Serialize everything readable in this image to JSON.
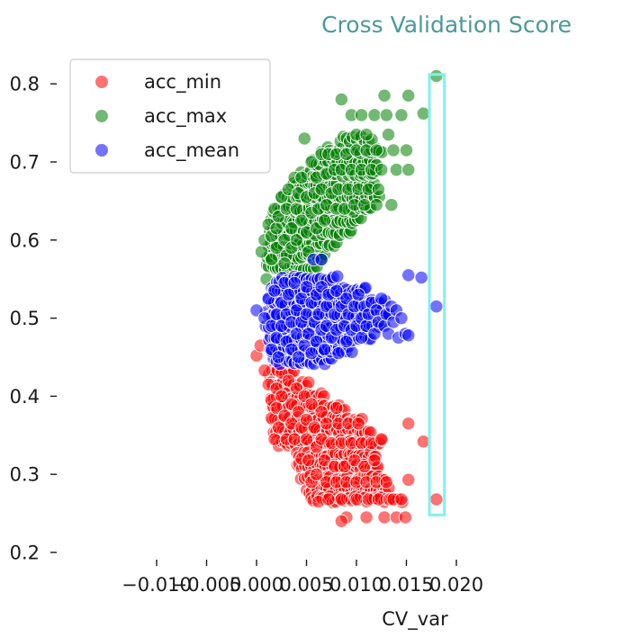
{
  "chart_data": {
    "type": "scatter",
    "title": "Cross Validation Score",
    "xlabel": "CV_var",
    "ylabel": "",
    "xlim": [
      -0.0125,
      0.0208
    ],
    "ylim": [
      0.2,
      0.84
    ],
    "x_ticks": [
      -0.01,
      -0.005,
      0.0,
      0.005,
      0.01,
      0.015,
      0.02
    ],
    "x_tick_labels": [
      "−0.010",
      "−0.005",
      "0.000",
      "0.005",
      "0.010",
      "0.015",
      "0.020"
    ],
    "y_ticks": [
      0.2,
      0.3,
      0.4,
      0.5,
      0.6,
      0.7,
      0.8
    ],
    "y_tick_labels": [
      "0.2",
      "0.3",
      "0.4",
      "0.5",
      "0.6",
      "0.7",
      "0.8"
    ],
    "grid": false,
    "legend_position": "top-left",
    "colors": {
      "acc_min": "#ff0000",
      "acc_max": "#008000",
      "acc_mean": "#0000ff",
      "highlight": "#7ff2f2",
      "title": "#4a9a99"
    },
    "highlight_box": {
      "x_range": [
        0.0173,
        0.0188
      ],
      "y_range": [
        0.248,
        0.812
      ]
    },
    "series": [
      {
        "name": "acc_min",
        "points": [
          [
            0.0,
            0.452
          ],
          [
            0.0004,
            0.465
          ],
          [
            0.0008,
            0.433
          ],
          [
            0.0012,
            0.415
          ],
          [
            0.0015,
            0.395
          ],
          [
            0.0015,
            0.372
          ],
          [
            0.0018,
            0.345
          ],
          [
            0.002,
            0.41
          ],
          [
            0.002,
            0.385
          ],
          [
            0.0022,
            0.36
          ],
          [
            0.0025,
            0.43
          ],
          [
            0.0025,
            0.4
          ],
          [
            0.0028,
            0.375
          ],
          [
            0.003,
            0.345
          ],
          [
            0.0032,
            0.42
          ],
          [
            0.0035,
            0.39
          ],
          [
            0.0035,
            0.365
          ],
          [
            0.0038,
            0.345
          ],
          [
            0.004,
            0.41
          ],
          [
            0.0042,
            0.38
          ],
          [
            0.0045,
            0.36
          ],
          [
            0.0045,
            0.32
          ],
          [
            0.0048,
            0.4
          ],
          [
            0.005,
            0.37
          ],
          [
            0.005,
            0.345
          ],
          [
            0.0052,
            0.318
          ],
          [
            0.0055,
            0.29
          ],
          [
            0.0055,
            0.39
          ],
          [
            0.0058,
            0.36
          ],
          [
            0.006,
            0.335
          ],
          [
            0.006,
            0.3
          ],
          [
            0.0062,
            0.265
          ],
          [
            0.0065,
            0.38
          ],
          [
            0.0065,
            0.345
          ],
          [
            0.0068,
            0.318
          ],
          [
            0.007,
            0.29
          ],
          [
            0.007,
            0.365
          ],
          [
            0.0072,
            0.268
          ],
          [
            0.0075,
            0.34
          ],
          [
            0.0078,
            0.31
          ],
          [
            0.008,
            0.385
          ],
          [
            0.008,
            0.29
          ],
          [
            0.0082,
            0.365
          ],
          [
            0.0085,
            0.34
          ],
          [
            0.0085,
            0.268
          ],
          [
            0.0088,
            0.31
          ],
          [
            0.009,
            0.29
          ],
          [
            0.009,
            0.245
          ],
          [
            0.0092,
            0.365
          ],
          [
            0.0095,
            0.34
          ],
          [
            0.0098,
            0.318
          ],
          [
            0.01,
            0.29
          ],
          [
            0.01,
            0.268
          ],
          [
            0.0102,
            0.365
          ],
          [
            0.0105,
            0.34
          ],
          [
            0.0108,
            0.31
          ],
          [
            0.011,
            0.29
          ],
          [
            0.011,
            0.245
          ],
          [
            0.0112,
            0.268
          ],
          [
            0.0115,
            0.34
          ],
          [
            0.0118,
            0.318
          ],
          [
            0.012,
            0.29
          ],
          [
            0.0122,
            0.268
          ],
          [
            0.0125,
            0.345
          ],
          [
            0.0128,
            0.245
          ],
          [
            0.013,
            0.29
          ],
          [
            0.0133,
            0.268
          ],
          [
            0.0137,
            0.268
          ],
          [
            0.014,
            0.245
          ],
          [
            0.0145,
            0.268
          ],
          [
            0.0149,
            0.245
          ],
          [
            0.0152,
            0.365
          ],
          [
            0.0152,
            0.293
          ],
          [
            0.0167,
            0.342
          ],
          [
            0.018,
            0.268
          ],
          [
            0.0085,
            0.24
          ]
        ]
      },
      {
        "name": "acc_max",
        "points": [
          [
            0.0005,
            0.585
          ],
          [
            0.0008,
            0.6
          ],
          [
            0.001,
            0.55
          ],
          [
            0.0012,
            0.62
          ],
          [
            0.0015,
            0.605
          ],
          [
            0.0015,
            0.575
          ],
          [
            0.0018,
            0.64
          ],
          [
            0.002,
            0.615
          ],
          [
            0.002,
            0.59
          ],
          [
            0.0022,
            0.63
          ],
          [
            0.0025,
            0.655
          ],
          [
            0.0028,
            0.6
          ],
          [
            0.003,
            0.64
          ],
          [
            0.003,
            0.58
          ],
          [
            0.0032,
            0.665
          ],
          [
            0.0035,
            0.615
          ],
          [
            0.0035,
            0.59
          ],
          [
            0.0038,
            0.68
          ],
          [
            0.004,
            0.64
          ],
          [
            0.004,
            0.6
          ],
          [
            0.0042,
            0.66
          ],
          [
            0.0045,
            0.625
          ],
          [
            0.0045,
            0.68
          ],
          [
            0.0048,
            0.73
          ],
          [
            0.005,
            0.655
          ],
          [
            0.005,
            0.61
          ],
          [
            0.0052,
            0.585
          ],
          [
            0.0055,
            0.635
          ],
          [
            0.0055,
            0.7
          ],
          [
            0.0058,
            0.66
          ],
          [
            0.006,
            0.68
          ],
          [
            0.006,
            0.615
          ],
          [
            0.0062,
            0.64
          ],
          [
            0.0065,
            0.71
          ],
          [
            0.0065,
            0.665
          ],
          [
            0.0068,
            0.625
          ],
          [
            0.007,
            0.685
          ],
          [
            0.007,
            0.645
          ],
          [
            0.0072,
            0.71
          ],
          [
            0.0075,
            0.66
          ],
          [
            0.0078,
            0.69
          ],
          [
            0.008,
            0.64
          ],
          [
            0.008,
            0.71
          ],
          [
            0.0082,
            0.665
          ],
          [
            0.0085,
            0.69
          ],
          [
            0.0085,
            0.78
          ],
          [
            0.0088,
            0.64
          ],
          [
            0.009,
            0.71
          ],
          [
            0.0092,
            0.665
          ],
          [
            0.0095,
            0.69
          ],
          [
            0.0095,
            0.76
          ],
          [
            0.0098,
            0.645
          ],
          [
            0.01,
            0.715
          ],
          [
            0.01,
            0.735
          ],
          [
            0.0102,
            0.665
          ],
          [
            0.0105,
            0.69
          ],
          [
            0.0105,
            0.76
          ],
          [
            0.0108,
            0.645
          ],
          [
            0.011,
            0.715
          ],
          [
            0.011,
            0.735
          ],
          [
            0.0112,
            0.665
          ],
          [
            0.0115,
            0.69
          ],
          [
            0.0118,
            0.76
          ],
          [
            0.012,
            0.645
          ],
          [
            0.012,
            0.715
          ],
          [
            0.0122,
            0.665
          ],
          [
            0.0125,
            0.69
          ],
          [
            0.0128,
            0.785
          ],
          [
            0.013,
            0.76
          ],
          [
            0.0132,
            0.735
          ],
          [
            0.0135,
            0.645
          ],
          [
            0.0137,
            0.715
          ],
          [
            0.014,
            0.69
          ],
          [
            0.0145,
            0.76
          ],
          [
            0.015,
            0.715
          ],
          [
            0.0152,
            0.785
          ],
          [
            0.0152,
            0.69
          ],
          [
            0.0167,
            0.762
          ],
          [
            0.018,
            0.81
          ],
          [
            0.0028,
            0.57
          ],
          [
            0.0065,
            0.575
          ]
        ]
      },
      {
        "name": "acc_mean",
        "points": [
          [
            0.0,
            0.51
          ],
          [
            0.0008,
            0.5
          ],
          [
            0.0012,
            0.525
          ],
          [
            0.0015,
            0.49
          ],
          [
            0.0015,
            0.46
          ],
          [
            0.0018,
            0.535
          ],
          [
            0.002,
            0.505
          ],
          [
            0.002,
            0.475
          ],
          [
            0.0022,
            0.45
          ],
          [
            0.0025,
            0.52
          ],
          [
            0.0025,
            0.49
          ],
          [
            0.0028,
            0.545
          ],
          [
            0.003,
            0.505
          ],
          [
            0.003,
            0.47
          ],
          [
            0.0032,
            0.53
          ],
          [
            0.0035,
            0.495
          ],
          [
            0.0035,
            0.46
          ],
          [
            0.0038,
            0.545
          ],
          [
            0.004,
            0.51
          ],
          [
            0.004,
            0.48
          ],
          [
            0.0042,
            0.45
          ],
          [
            0.0045,
            0.525
          ],
          [
            0.0045,
            0.495
          ],
          [
            0.0048,
            0.465
          ],
          [
            0.005,
            0.54
          ],
          [
            0.005,
            0.505
          ],
          [
            0.0052,
            0.48
          ],
          [
            0.0055,
            0.52
          ],
          [
            0.0055,
            0.455
          ],
          [
            0.0058,
            0.495
          ],
          [
            0.006,
            0.53
          ],
          [
            0.006,
            0.47
          ],
          [
            0.0062,
            0.505
          ],
          [
            0.0065,
            0.485
          ],
          [
            0.0065,
            0.54
          ],
          [
            0.0068,
            0.46
          ],
          [
            0.007,
            0.515
          ],
          [
            0.007,
            0.49
          ],
          [
            0.0072,
            0.53
          ],
          [
            0.0075,
            0.475
          ],
          [
            0.0078,
            0.505
          ],
          [
            0.008,
            0.535
          ],
          [
            0.008,
            0.485
          ],
          [
            0.0082,
            0.455
          ],
          [
            0.0085,
            0.515
          ],
          [
            0.0088,
            0.49
          ],
          [
            0.009,
            0.525
          ],
          [
            0.009,
            0.47
          ],
          [
            0.0092,
            0.505
          ],
          [
            0.0095,
            0.485
          ],
          [
            0.0098,
            0.515
          ],
          [
            0.01,
            0.49
          ],
          [
            0.0102,
            0.53
          ],
          [
            0.0105,
            0.5
          ],
          [
            0.0105,
            0.475
          ],
          [
            0.0108,
            0.515
          ],
          [
            0.011,
            0.49
          ],
          [
            0.0112,
            0.505
          ],
          [
            0.0115,
            0.52
          ],
          [
            0.0118,
            0.48
          ],
          [
            0.012,
            0.51
          ],
          [
            0.0122,
            0.495
          ],
          [
            0.0125,
            0.525
          ],
          [
            0.0128,
            0.49
          ],
          [
            0.013,
            0.505
          ],
          [
            0.0132,
            0.48
          ],
          [
            0.0135,
            0.515
          ],
          [
            0.0137,
            0.495
          ],
          [
            0.014,
            0.51
          ],
          [
            0.0142,
            0.475
          ],
          [
            0.0145,
            0.5
          ],
          [
            0.0149,
            0.48
          ],
          [
            0.0152,
            0.555
          ],
          [
            0.0152,
            0.478
          ],
          [
            0.0165,
            0.552
          ],
          [
            0.018,
            0.515
          ],
          [
            0.0057,
            0.575
          ],
          [
            0.0065,
            0.575
          ]
        ]
      }
    ],
    "dense_bands": [
      {
        "series": "acc_min",
        "rows": [
          [
            0.43,
            0.0012,
            0.0038
          ],
          [
            0.415,
            0.0014,
            0.0052
          ],
          [
            0.4,
            0.0014,
            0.0068
          ],
          [
            0.385,
            0.0015,
            0.0088
          ],
          [
            0.37,
            0.0016,
            0.0105
          ],
          [
            0.355,
            0.0017,
            0.0115
          ],
          [
            0.34,
            0.002,
            0.0125
          ],
          [
            0.325,
            0.004,
            0.012
          ],
          [
            0.31,
            0.004,
            0.0122
          ],
          [
            0.295,
            0.0045,
            0.0128
          ],
          [
            0.28,
            0.005,
            0.0132
          ],
          [
            0.268,
            0.0055,
            0.0145
          ]
        ]
      },
      {
        "series": "acc_max",
        "rows": [
          [
            0.565,
            0.001,
            0.006
          ],
          [
            0.58,
            0.001,
            0.0068
          ],
          [
            0.595,
            0.0012,
            0.008
          ],
          [
            0.61,
            0.0013,
            0.0095
          ],
          [
            0.625,
            0.0015,
            0.0105
          ],
          [
            0.64,
            0.0018,
            0.0115
          ],
          [
            0.655,
            0.0025,
            0.0122
          ],
          [
            0.67,
            0.0035,
            0.0118
          ],
          [
            0.685,
            0.0045,
            0.012
          ],
          [
            0.7,
            0.0055,
            0.012
          ],
          [
            0.715,
            0.0065,
            0.0125
          ],
          [
            0.73,
            0.0085,
            0.0115
          ]
        ]
      },
      {
        "series": "acc_mean",
        "rows": [
          [
            0.445,
            0.0018,
            0.0075
          ],
          [
            0.46,
            0.0013,
            0.0095
          ],
          [
            0.475,
            0.0012,
            0.0115
          ],
          [
            0.49,
            0.001,
            0.0125
          ],
          [
            0.505,
            0.001,
            0.0132
          ],
          [
            0.52,
            0.0012,
            0.0128
          ],
          [
            0.535,
            0.0015,
            0.011
          ],
          [
            0.55,
            0.002,
            0.008
          ]
        ]
      }
    ]
  }
}
